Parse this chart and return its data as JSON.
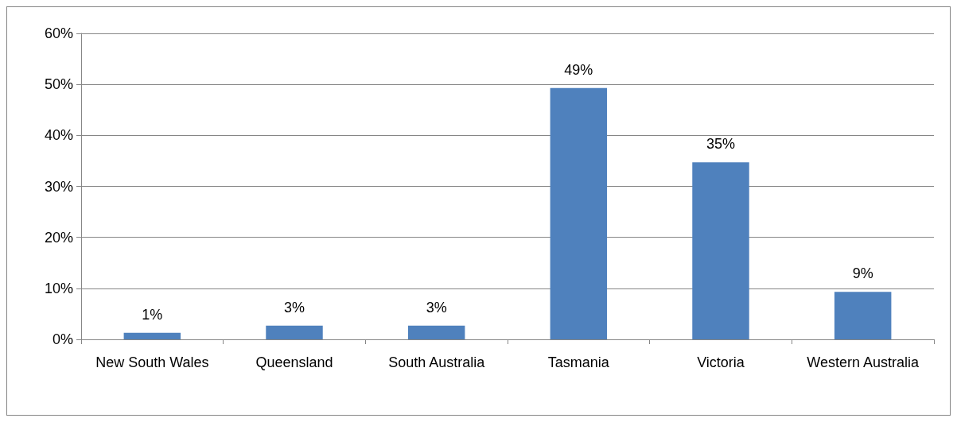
{
  "chart_data": {
    "type": "bar",
    "categories": [
      "New South Wales",
      "Queensland",
      "South Australia",
      "Tasmania",
      "Victoria",
      "Western Australia"
    ],
    "values": [
      1.3,
      2.7,
      2.7,
      49.3,
      34.7,
      9.3
    ],
    "value_labels": [
      "1%",
      "3%",
      "3%",
      "49%",
      "35%",
      "9%"
    ],
    "color": "#4f81bd",
    "ylim": [
      0,
      60
    ],
    "yticks": [
      {
        "value": 0,
        "label": "0%"
      },
      {
        "value": 10,
        "label": "10%"
      },
      {
        "value": 20,
        "label": "20%"
      },
      {
        "value": 30,
        "label": "30%"
      },
      {
        "value": 40,
        "label": "40%"
      },
      {
        "value": 50,
        "label": "50%"
      },
      {
        "value": 60,
        "label": "60%"
      }
    ],
    "grid": "y"
  }
}
